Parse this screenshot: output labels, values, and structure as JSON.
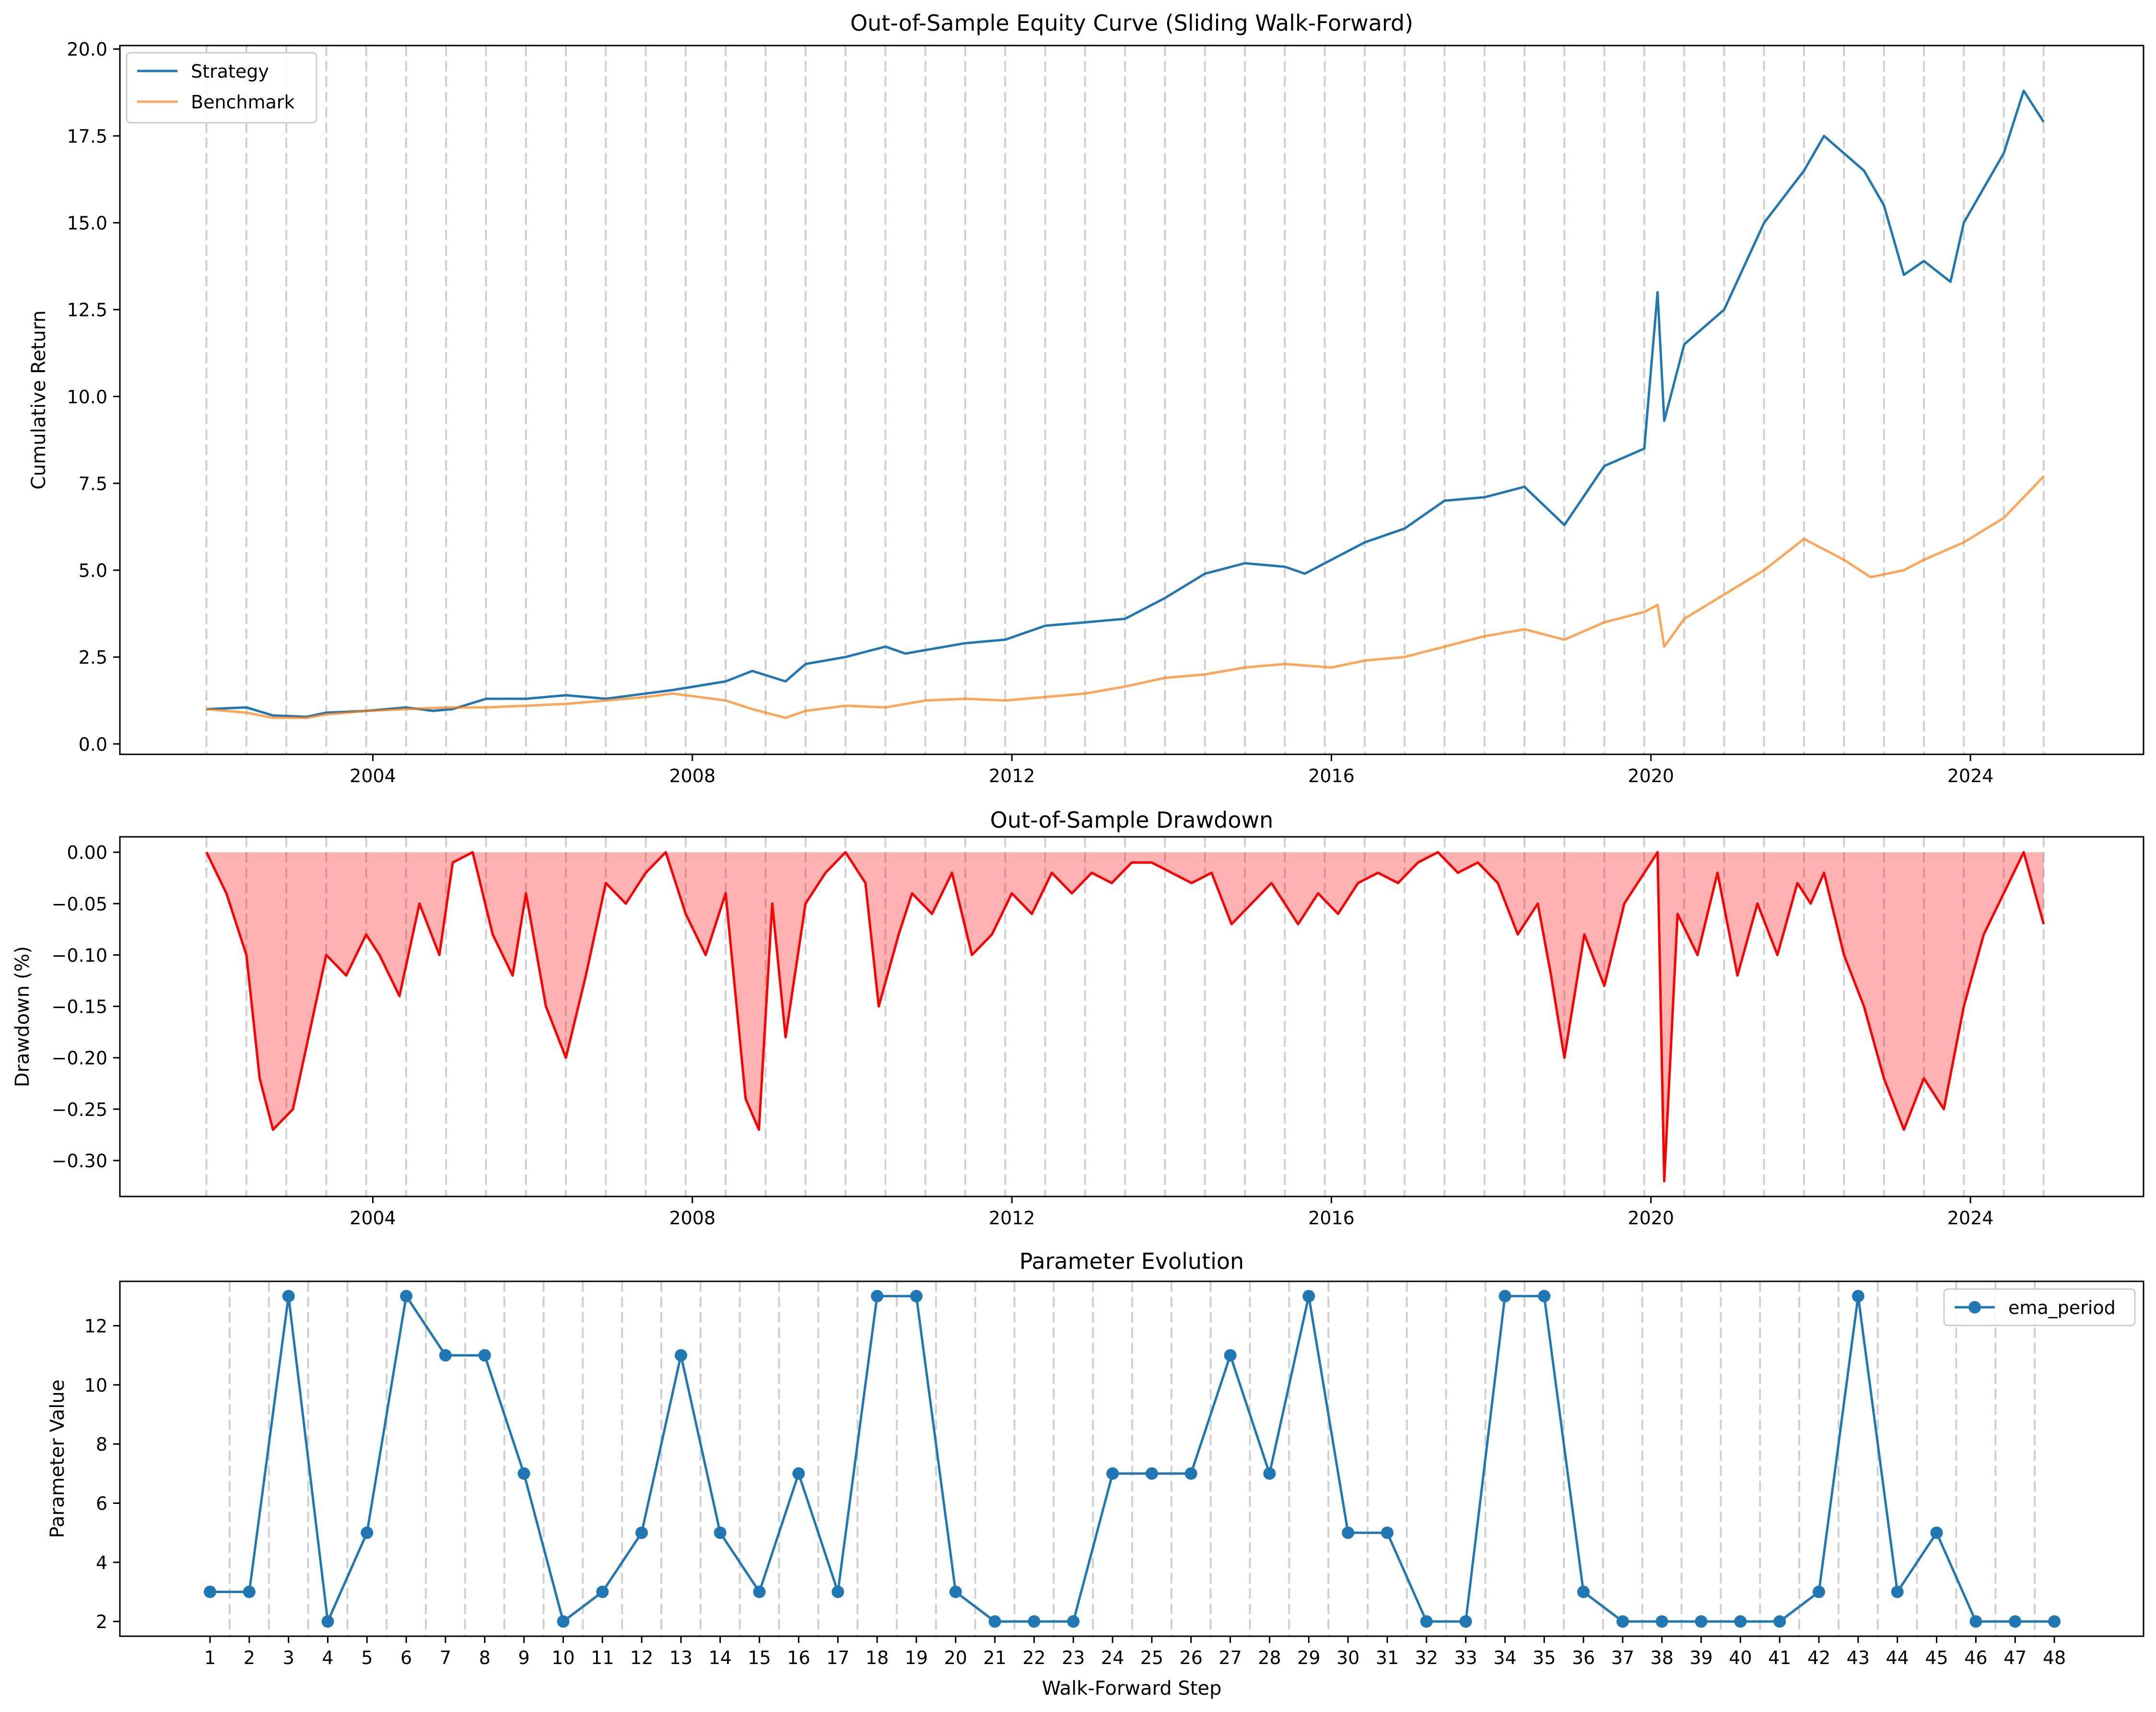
{
  "chart_data": [
    {
      "type": "line",
      "title": "Out-of-Sample Equity Curve (Sliding Walk-Forward)",
      "xlabel": "",
      "ylabel": "Cumulative Return",
      "x_ticks": [
        "2004",
        "2008",
        "2012",
        "2016",
        "2020",
        "2024"
      ],
      "y_ticks": [
        "0.0",
        "2.5",
        "5.0",
        "7.5",
        "10.0",
        "12.5",
        "15.0",
        "17.5",
        "20.0"
      ],
      "xlim": [
        "2000-11",
        "2026-03"
      ],
      "ylim": [
        -0.3,
        20.1
      ],
      "grid": false,
      "legend": "upper-left",
      "walk_forward_boundaries": [
        "2001-12",
        "2002-06",
        "2002-12",
        "2003-06",
        "2003-12",
        "2004-06",
        "2004-12",
        "2005-06",
        "2005-12",
        "2006-06",
        "2006-12",
        "2007-06",
        "2007-12",
        "2008-06",
        "2008-12",
        "2009-06",
        "2009-12",
        "2010-06",
        "2010-12",
        "2011-06",
        "2011-12",
        "2012-06",
        "2012-12",
        "2013-06",
        "2013-12",
        "2014-06",
        "2014-12",
        "2015-06",
        "2015-12",
        "2016-06",
        "2016-12",
        "2017-06",
        "2017-12",
        "2018-06",
        "2018-12",
        "2019-06",
        "2019-12",
        "2020-06",
        "2020-12",
        "2021-06",
        "2021-12",
        "2022-06",
        "2022-12",
        "2023-06",
        "2023-12",
        "2024-06",
        "2024-12"
      ],
      "series": [
        {
          "name": "Strategy",
          "color": "#1f77b4",
          "x": [
            "2001-12",
            "2002-06",
            "2002-10",
            "2003-03",
            "2003-06",
            "2003-12",
            "2004-06",
            "2004-10",
            "2005-01",
            "2005-06",
            "2005-12",
            "2006-06",
            "2006-12",
            "2007-06",
            "2007-10",
            "2008-06",
            "2008-10",
            "2009-03",
            "2009-06",
            "2009-12",
            "2010-06",
            "2010-09",
            "2011-06",
            "2011-12",
            "2012-06",
            "2012-12",
            "2013-06",
            "2013-12",
            "2014-06",
            "2014-12",
            "2015-06",
            "2015-09",
            "2016-06",
            "2016-12",
            "2017-06",
            "2017-12",
            "2018-06",
            "2018-12",
            "2019-06",
            "2019-12",
            "2020-02",
            "2020-03",
            "2020-06",
            "2020-12",
            "2021-06",
            "2021-12",
            "2022-03",
            "2022-06",
            "2022-09",
            "2022-12",
            "2023-03",
            "2023-06",
            "2023-10",
            "2023-12",
            "2024-06",
            "2024-09",
            "2024-12"
          ],
          "y": [
            1.0,
            1.05,
            0.82,
            0.78,
            0.9,
            0.95,
            1.05,
            0.95,
            1.0,
            1.3,
            1.3,
            1.4,
            1.3,
            1.45,
            1.55,
            1.8,
            2.1,
            1.8,
            2.3,
            2.5,
            2.8,
            2.6,
            2.9,
            3.0,
            3.4,
            3.5,
            3.6,
            4.2,
            4.9,
            5.2,
            5.1,
            4.9,
            5.8,
            6.2,
            7.0,
            7.1,
            7.4,
            6.3,
            8.0,
            8.5,
            13.0,
            9.3,
            11.5,
            12.5,
            15.0,
            16.5,
            17.5,
            17.0,
            16.5,
            15.5,
            13.5,
            13.9,
            13.3,
            15.0,
            17.0,
            18.8,
            17.9
          ]
        },
        {
          "name": "Benchmark",
          "color": "#ff7f0e",
          "x": [
            "2001-12",
            "2002-06",
            "2002-10",
            "2003-03",
            "2003-06",
            "2003-12",
            "2004-06",
            "2004-12",
            "2005-06",
            "2005-12",
            "2006-06",
            "2006-12",
            "2007-06",
            "2007-10",
            "2008-06",
            "2008-10",
            "2009-03",
            "2009-06",
            "2009-12",
            "2010-06",
            "2010-12",
            "2011-06",
            "2011-12",
            "2012-06",
            "2012-12",
            "2013-06",
            "2013-12",
            "2014-06",
            "2014-12",
            "2015-06",
            "2016-01",
            "2016-06",
            "2016-12",
            "2017-06",
            "2017-12",
            "2018-06",
            "2018-12",
            "2019-06",
            "2019-12",
            "2020-02",
            "2020-03",
            "2020-06",
            "2020-12",
            "2021-06",
            "2021-12",
            "2022-06",
            "2022-10",
            "2023-03",
            "2023-06",
            "2023-12",
            "2024-06",
            "2024-12"
          ],
          "y": [
            1.0,
            0.9,
            0.75,
            0.75,
            0.85,
            0.95,
            1.0,
            1.05,
            1.05,
            1.1,
            1.15,
            1.25,
            1.35,
            1.45,
            1.25,
            1.0,
            0.75,
            0.95,
            1.1,
            1.05,
            1.25,
            1.3,
            1.25,
            1.35,
            1.45,
            1.65,
            1.9,
            2.0,
            2.2,
            2.3,
            2.2,
            2.4,
            2.5,
            2.8,
            3.1,
            3.3,
            3.0,
            3.5,
            3.8,
            4.0,
            2.8,
            3.6,
            4.3,
            5.0,
            5.9,
            5.3,
            4.8,
            5.0,
            5.3,
            5.8,
            6.5,
            7.7
          ]
        }
      ]
    },
    {
      "type": "area",
      "title": "Out-of-Sample Drawdown",
      "xlabel": "",
      "ylabel": "Drawdown (%)",
      "x_ticks": [
        "2004",
        "2008",
        "2012",
        "2016",
        "2020",
        "2024"
      ],
      "y_ticks": [
        "0.00",
        "−0.05",
        "−0.10",
        "−0.15",
        "−0.20",
        "−0.25",
        "−0.30"
      ],
      "xlim": [
        "2000-11",
        "2026-03"
      ],
      "ylim": [
        -0.335,
        0.015
      ],
      "grid": false,
      "series": [
        {
          "name": "",
          "color": "#ff0000",
          "fill_color": "#ff0000",
          "fill_alpha": 0.3,
          "x": [
            "2001-12",
            "2002-03",
            "2002-06",
            "2002-08",
            "2002-10",
            "2003-01",
            "2003-03",
            "2003-06",
            "2003-09",
            "2003-12",
            "2004-02",
            "2004-05",
            "2004-08",
            "2004-11",
            "2005-01",
            "2005-04",
            "2005-07",
            "2005-10",
            "2005-12",
            "2006-03",
            "2006-06",
            "2006-09",
            "2006-12",
            "2007-03",
            "2007-06",
            "2007-09",
            "2007-12",
            "2008-03",
            "2008-06",
            "2008-09",
            "2008-11",
            "2009-01",
            "2009-03",
            "2009-06",
            "2009-09",
            "2009-12",
            "2010-03",
            "2010-05",
            "2010-08",
            "2010-10",
            "2011-01",
            "2011-04",
            "2011-07",
            "2011-10",
            "2012-01",
            "2012-04",
            "2012-07",
            "2012-10",
            "2013-01",
            "2013-04",
            "2013-07",
            "2013-10",
            "2014-01",
            "2014-04",
            "2014-07",
            "2014-10",
            "2015-01",
            "2015-04",
            "2015-08",
            "2015-11",
            "2016-02",
            "2016-05",
            "2016-08",
            "2016-11",
            "2017-02",
            "2017-05",
            "2017-08",
            "2017-11",
            "2018-02",
            "2018-05",
            "2018-08",
            "2018-10",
            "2018-12",
            "2019-03",
            "2019-06",
            "2019-09",
            "2019-12",
            "2020-02",
            "2020-03",
            "2020-05",
            "2020-08",
            "2020-11",
            "2021-02",
            "2021-05",
            "2021-08",
            "2021-11",
            "2022-01",
            "2022-03",
            "2022-06",
            "2022-09",
            "2022-12",
            "2023-03",
            "2023-06",
            "2023-09",
            "2023-12",
            "2024-03",
            "2024-06",
            "2024-09",
            "2024-12"
          ],
          "y": [
            0.0,
            -0.04,
            -0.1,
            -0.22,
            -0.27,
            -0.25,
            -0.19,
            -0.1,
            -0.12,
            -0.08,
            -0.1,
            -0.14,
            -0.05,
            -0.1,
            -0.01,
            0.0,
            -0.08,
            -0.12,
            -0.04,
            -0.15,
            -0.2,
            -0.12,
            -0.03,
            -0.05,
            -0.02,
            0.0,
            -0.06,
            -0.1,
            -0.04,
            -0.24,
            -0.27,
            -0.05,
            -0.18,
            -0.05,
            -0.02,
            0.0,
            -0.03,
            -0.15,
            -0.08,
            -0.04,
            -0.06,
            -0.02,
            -0.1,
            -0.08,
            -0.04,
            -0.06,
            -0.02,
            -0.04,
            -0.02,
            -0.03,
            -0.01,
            -0.01,
            -0.02,
            -0.03,
            -0.02,
            -0.07,
            -0.05,
            -0.03,
            -0.07,
            -0.04,
            -0.06,
            -0.03,
            -0.02,
            -0.03,
            -0.01,
            0.0,
            -0.02,
            -0.01,
            -0.03,
            -0.08,
            -0.05,
            -0.12,
            -0.2,
            -0.08,
            -0.13,
            -0.05,
            -0.02,
            0.0,
            -0.32,
            -0.06,
            -0.1,
            -0.02,
            -0.12,
            -0.05,
            -0.1,
            -0.03,
            -0.05,
            -0.02,
            -0.1,
            -0.15,
            -0.22,
            -0.27,
            -0.22,
            -0.25,
            -0.15,
            -0.08,
            -0.04,
            0.0,
            -0.07
          ]
        }
      ]
    },
    {
      "type": "line",
      "title": "Parameter Evolution",
      "xlabel": "Walk-Forward Step",
      "ylabel": "Parameter Value",
      "y_ticks": [
        "2",
        "4",
        "6",
        "8",
        "10",
        "12"
      ],
      "ylim": [
        1.5,
        13.5
      ],
      "grid": false,
      "legend": "upper-right",
      "categories": [
        "1",
        "2",
        "3",
        "4",
        "5",
        "6",
        "7",
        "8",
        "9",
        "10",
        "11",
        "12",
        "13",
        "14",
        "15",
        "16",
        "17",
        "18",
        "19",
        "20",
        "21",
        "22",
        "23",
        "24",
        "25",
        "26",
        "27",
        "28",
        "29",
        "30",
        "31",
        "32",
        "33",
        "34",
        "35",
        "36",
        "37",
        "38",
        "39",
        "40",
        "41",
        "42",
        "43",
        "44",
        "45",
        "46",
        "47",
        "48"
      ],
      "series": [
        {
          "name": "ema_period",
          "color": "#1f77b4",
          "values": [
            3,
            3,
            13,
            2,
            5,
            13,
            11,
            11,
            7,
            2,
            3,
            5,
            11,
            5,
            3,
            7,
            3,
            13,
            13,
            3,
            2,
            2,
            2,
            7,
            7,
            7,
            11,
            7,
            13,
            5,
            5,
            2,
            2,
            13,
            13,
            3,
            2,
            2,
            2,
            2,
            2,
            3,
            13,
            3,
            5,
            2,
            2,
            2
          ]
        }
      ]
    }
  ]
}
